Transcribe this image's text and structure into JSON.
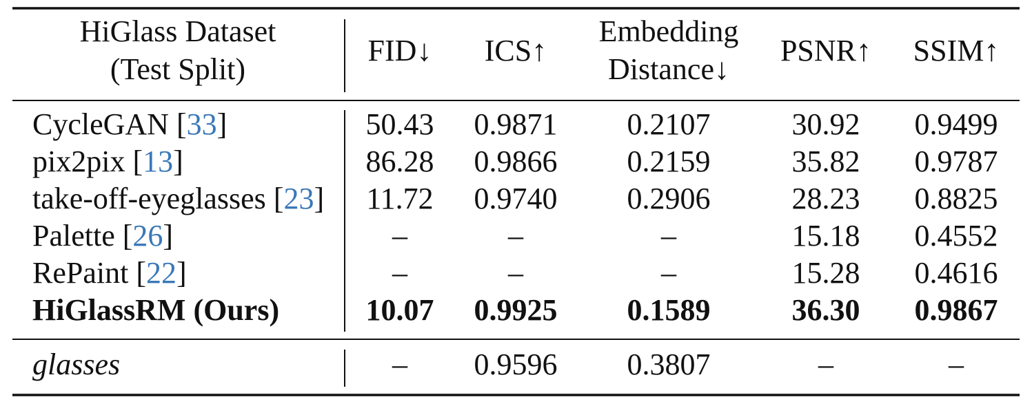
{
  "table": {
    "header": [
      [
        "HiGlass Dataset",
        "(Test Split)"
      ],
      [
        "FID↓"
      ],
      [
        "ICS↑"
      ],
      [
        "Embedding",
        "Distance↓"
      ],
      [
        "PSNR↑"
      ],
      [
        "SSIM↑"
      ]
    ],
    "sections": [
      {
        "rows": [
          {
            "method": "CycleGAN",
            "ref": [
              "[",
              "33",
              "]"
            ],
            "cells": [
              "50.43",
              "0.9871",
              "0.2107",
              "30.92",
              "0.9499"
            ]
          },
          {
            "method": "pix2pix",
            "ref": [
              "[",
              "13",
              "]"
            ],
            "cells": [
              "86.28",
              "0.9866",
              "0.2159",
              "35.82",
              "0.9787"
            ]
          },
          {
            "method": "take-off-eyeglasses",
            "ref": [
              "[",
              "23",
              "]"
            ],
            "cells": [
              "11.72",
              "0.9740",
              "0.2906",
              "28.23",
              "0.8825"
            ]
          },
          {
            "method": "Palette",
            "ref": [
              "[",
              "26",
              "]"
            ],
            "cells": [
              "–",
              "–",
              "–",
              "15.18",
              "0.4552"
            ]
          },
          {
            "method": "RePaint",
            "ref": [
              "[",
              "22",
              "]"
            ],
            "cells": [
              "–",
              "–",
              "–",
              "15.28",
              "0.4616"
            ]
          },
          {
            "method": "HiGlassRM (Ours)",
            "bold": true,
            "cells": [
              "10.07",
              "0.9925",
              "0.1589",
              "36.30",
              "0.9867"
            ]
          }
        ]
      },
      {
        "rows": [
          {
            "method": "glasses",
            "italic": true,
            "cells": [
              "–",
              "0.9596",
              "0.3807",
              "–",
              "–"
            ]
          }
        ]
      }
    ]
  }
}
